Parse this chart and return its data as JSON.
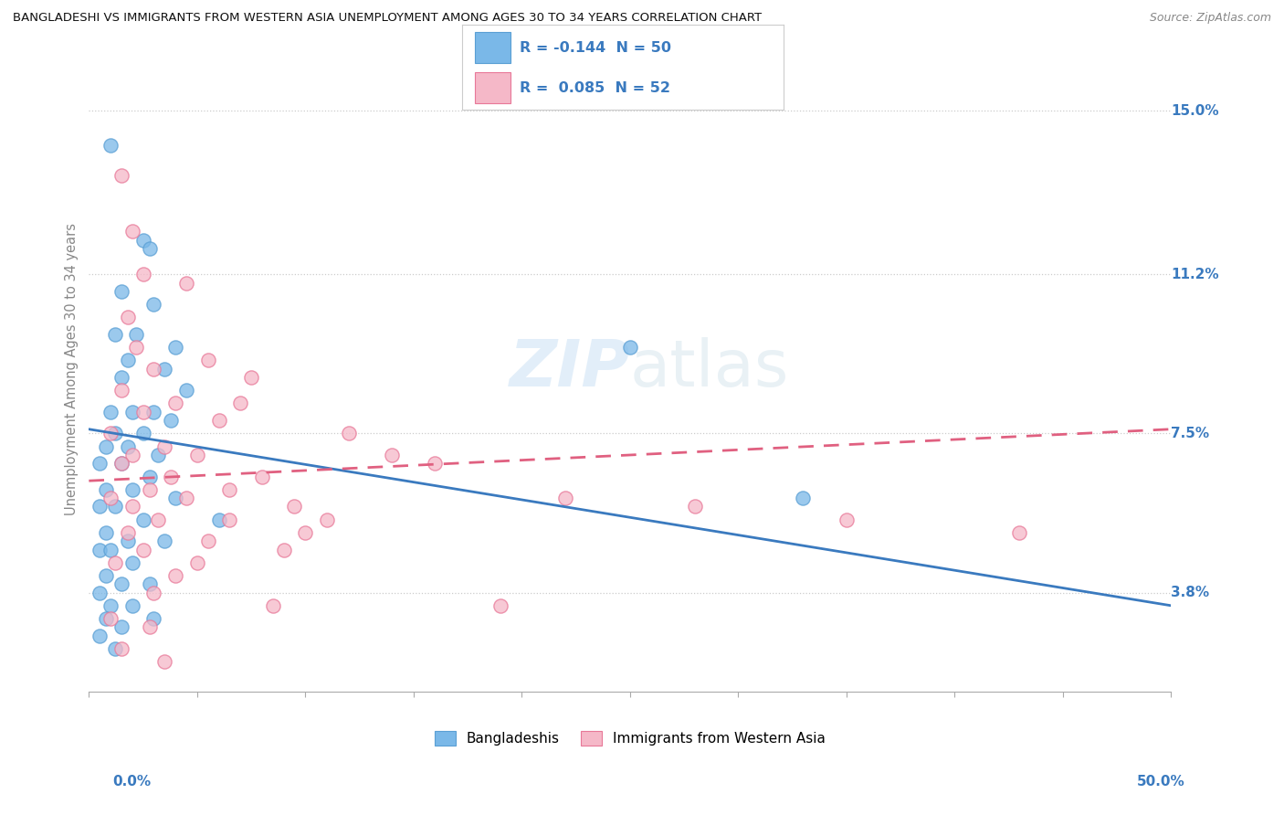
{
  "title": "BANGLADESHI VS IMMIGRANTS FROM WESTERN ASIA UNEMPLOYMENT AMONG AGES 30 TO 34 YEARS CORRELATION CHART",
  "source": "Source: ZipAtlas.com",
  "ylabel": "Unemployment Among Ages 30 to 34 years",
  "ytick_labels": [
    "3.8%",
    "7.5%",
    "11.2%",
    "15.0%"
  ],
  "ytick_values": [
    3.8,
    7.5,
    11.2,
    15.0
  ],
  "xlim": [
    0.0,
    50.0
  ],
  "ylim": [
    1.5,
    16.5
  ],
  "watermark": "ZIPAtlas",
  "bangladeshi_color": "#7ab8e8",
  "bangladeshi_edge": "#5a9fd4",
  "western_asia_color": "#f5b8c8",
  "western_asia_edge": "#e87898",
  "trend_blue_color": "#3a7abf",
  "trend_pink_color": "#e06080",
  "trend_blue_start_y": 7.6,
  "trend_blue_end_y": 3.5,
  "trend_pink_start_y": 6.4,
  "trend_pink_end_y": 7.6,
  "blue_scatter": [
    [
      1.0,
      14.2
    ],
    [
      2.5,
      12.0
    ],
    [
      2.8,
      11.8
    ],
    [
      1.5,
      10.8
    ],
    [
      3.0,
      10.5
    ],
    [
      1.2,
      9.8
    ],
    [
      2.2,
      9.8
    ],
    [
      4.0,
      9.5
    ],
    [
      1.8,
      9.2
    ],
    [
      3.5,
      9.0
    ],
    [
      1.5,
      8.8
    ],
    [
      4.5,
      8.5
    ],
    [
      1.0,
      8.0
    ],
    [
      2.0,
      8.0
    ],
    [
      3.0,
      8.0
    ],
    [
      1.2,
      7.5
    ],
    [
      2.5,
      7.5
    ],
    [
      3.8,
      7.8
    ],
    [
      0.8,
      7.2
    ],
    [
      1.8,
      7.2
    ],
    [
      3.2,
      7.0
    ],
    [
      0.5,
      6.8
    ],
    [
      1.5,
      6.8
    ],
    [
      2.8,
      6.5
    ],
    [
      0.8,
      6.2
    ],
    [
      2.0,
      6.2
    ],
    [
      4.0,
      6.0
    ],
    [
      0.5,
      5.8
    ],
    [
      1.2,
      5.8
    ],
    [
      2.5,
      5.5
    ],
    [
      0.8,
      5.2
    ],
    [
      1.8,
      5.0
    ],
    [
      3.5,
      5.0
    ],
    [
      0.5,
      4.8
    ],
    [
      1.0,
      4.8
    ],
    [
      2.0,
      4.5
    ],
    [
      0.8,
      4.2
    ],
    [
      1.5,
      4.0
    ],
    [
      2.8,
      4.0
    ],
    [
      0.5,
      3.8
    ],
    [
      1.0,
      3.5
    ],
    [
      2.0,
      3.5
    ],
    [
      0.8,
      3.2
    ],
    [
      1.5,
      3.0
    ],
    [
      3.0,
      3.2
    ],
    [
      0.5,
      2.8
    ],
    [
      1.2,
      2.5
    ],
    [
      25.0,
      9.5
    ],
    [
      33.0,
      6.0
    ],
    [
      6.0,
      5.5
    ]
  ],
  "pink_scatter": [
    [
      1.5,
      13.5
    ],
    [
      2.0,
      12.2
    ],
    [
      2.5,
      11.2
    ],
    [
      4.5,
      11.0
    ],
    [
      1.8,
      10.2
    ],
    [
      2.2,
      9.5
    ],
    [
      5.5,
      9.2
    ],
    [
      3.0,
      9.0
    ],
    [
      7.5,
      8.8
    ],
    [
      1.5,
      8.5
    ],
    [
      4.0,
      8.2
    ],
    [
      2.5,
      8.0
    ],
    [
      6.0,
      7.8
    ],
    [
      1.0,
      7.5
    ],
    [
      3.5,
      7.2
    ],
    [
      2.0,
      7.0
    ],
    [
      5.0,
      7.0
    ],
    [
      1.5,
      6.8
    ],
    [
      3.8,
      6.5
    ],
    [
      2.8,
      6.2
    ],
    [
      8.0,
      6.5
    ],
    [
      1.0,
      6.0
    ],
    [
      4.5,
      6.0
    ],
    [
      2.0,
      5.8
    ],
    [
      6.5,
      5.5
    ],
    [
      3.2,
      5.5
    ],
    [
      10.0,
      5.2
    ],
    [
      1.8,
      5.2
    ],
    [
      5.5,
      5.0
    ],
    [
      2.5,
      4.8
    ],
    [
      9.0,
      4.8
    ],
    [
      1.2,
      4.5
    ],
    [
      4.0,
      4.2
    ],
    [
      3.0,
      3.8
    ],
    [
      19.0,
      3.5
    ],
    [
      1.0,
      3.2
    ],
    [
      2.8,
      3.0
    ],
    [
      1.5,
      2.5
    ],
    [
      35.0,
      5.5
    ],
    [
      43.0,
      5.2
    ],
    [
      12.0,
      7.5
    ],
    [
      16.0,
      6.8
    ],
    [
      7.0,
      8.2
    ],
    [
      22.0,
      6.0
    ],
    [
      5.0,
      4.5
    ],
    [
      9.5,
      5.8
    ],
    [
      14.0,
      7.0
    ],
    [
      6.5,
      6.2
    ],
    [
      11.0,
      5.5
    ],
    [
      28.0,
      5.8
    ],
    [
      3.5,
      2.2
    ],
    [
      8.5,
      3.5
    ]
  ],
  "legend_blue_text": "R = -0.144  N = 50",
  "legend_pink_text": "R =  0.085  N = 52",
  "legend_text_color": "#3a7abf",
  "bottom_legend_blue": "Bangladeshis",
  "bottom_legend_pink": "Immigrants from Western Asia"
}
